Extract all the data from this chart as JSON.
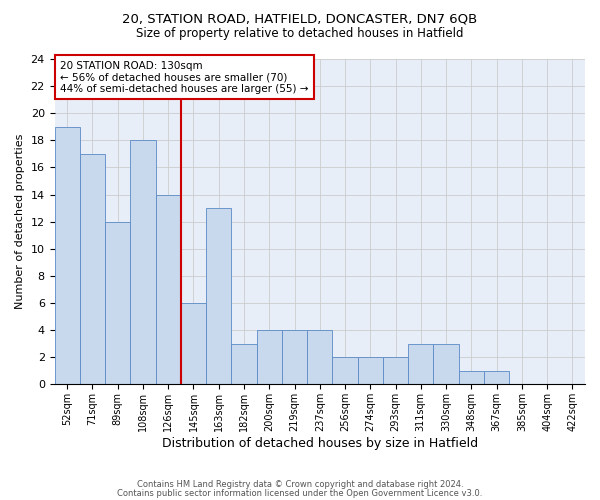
{
  "title1": "20, STATION ROAD, HATFIELD, DONCASTER, DN7 6QB",
  "title2": "Size of property relative to detached houses in Hatfield",
  "xlabel": "Distribution of detached houses by size in Hatfield",
  "ylabel": "Number of detached properties",
  "footnote1": "Contains HM Land Registry data © Crown copyright and database right 2024.",
  "footnote2": "Contains public sector information licensed under the Open Government Licence v3.0.",
  "bin_labels": [
    "52sqm",
    "71sqm",
    "89sqm",
    "108sqm",
    "126sqm",
    "145sqm",
    "163sqm",
    "182sqm",
    "200sqm",
    "219sqm",
    "237sqm",
    "256sqm",
    "274sqm",
    "293sqm",
    "311sqm",
    "330sqm",
    "348sqm",
    "367sqm",
    "385sqm",
    "404sqm",
    "422sqm"
  ],
  "bar_values": [
    19,
    17,
    12,
    18,
    14,
    6,
    13,
    3,
    4,
    4,
    4,
    2,
    2,
    2,
    3,
    3,
    1,
    1,
    0,
    0,
    0
  ],
  "bar_color": "#c8d9ee",
  "bar_edge_color": "#5a8ac6",
  "subject_line_color": "#cc0000",
  "annotation_text": "20 STATION ROAD: 130sqm\n← 56% of detached houses are smaller (70)\n44% of semi-detached houses are larger (55) →",
  "annotation_box_color": "#cc0000",
  "ylim": [
    0,
    24
  ],
  "yticks": [
    0,
    2,
    4,
    6,
    8,
    10,
    12,
    14,
    16,
    18,
    20,
    22,
    24
  ],
  "grid_color": "#cccccc",
  "background_color": "#e8eef8"
}
